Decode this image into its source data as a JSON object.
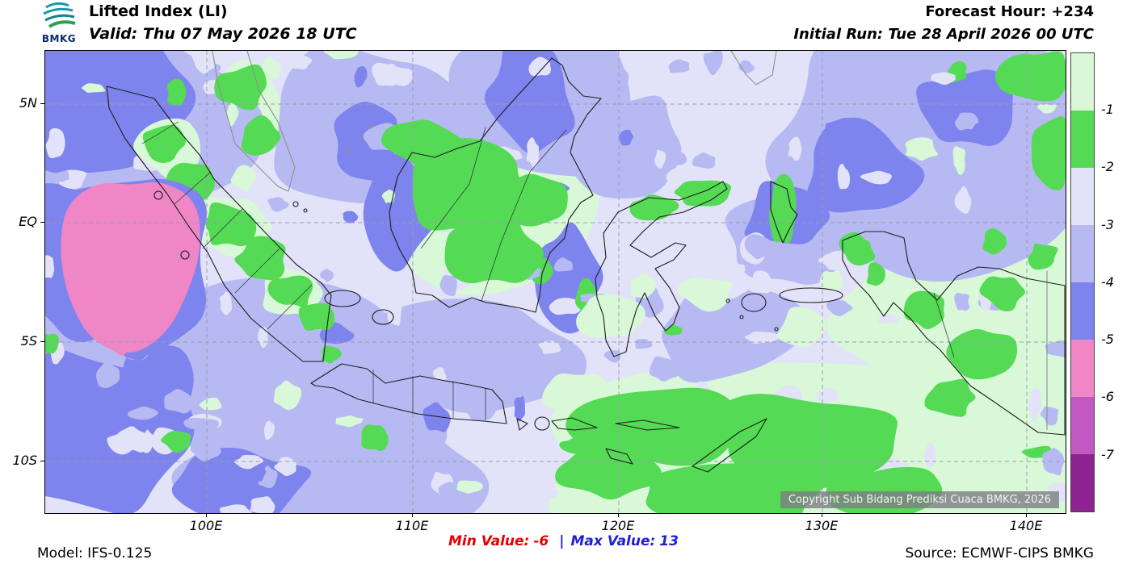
{
  "header": {
    "logo_text": "BMKG",
    "title": "Lifted Index (LI)",
    "valid": "Valid: Thu 07 May 2026 18 UTC",
    "forecast_hour": "Forecast Hour: +234",
    "initial_run": "Initial Run: Tue 28 April 2026 00 UTC"
  },
  "map": {
    "x_ticks": [
      "100E",
      "110E",
      "120E",
      "130E",
      "140E"
    ],
    "y_ticks": [
      "5N",
      "EQ",
      "5S",
      "10S"
    ],
    "copyright": "Copyright Sub Bidang Prediksi Cuaca BMKG, 2026"
  },
  "legend": {
    "tick_labels": [
      "-1",
      "-2",
      "-3",
      "-4",
      "-5",
      "-6",
      "-7"
    ],
    "bands": [
      {
        "name": "li-above--1",
        "color": "#d8f8d8"
      },
      {
        "name": "li--2-to--1",
        "color": "#55da55"
      },
      {
        "name": "li--3-to--2",
        "color": "#e2e3f8"
      },
      {
        "name": "li--4-to--3",
        "color": "#b7baf2"
      },
      {
        "name": "li--5-to--4",
        "color": "#7e84ee"
      },
      {
        "name": "li--6-to--5",
        "color": "#ef86c6"
      },
      {
        "name": "li--7-to--6",
        "color": "#c258c2"
      },
      {
        "name": "li-below--7",
        "color": "#8e2290"
      }
    ]
  },
  "footer": {
    "model": "Model: IFS-0.125",
    "min_label": "Min Value:",
    "min_value": "-6",
    "separator": "|",
    "max_label": "Max Value:",
    "max_value": "13",
    "source": "Source: ECMWF-CIPS BMKG"
  },
  "colors": {
    "min_text": "#e60000",
    "max_text": "#1f1fd8",
    "grid": "#9a9ab0",
    "coast": "#1c1c1c",
    "foreign_coast": "#8f8f8f"
  }
}
